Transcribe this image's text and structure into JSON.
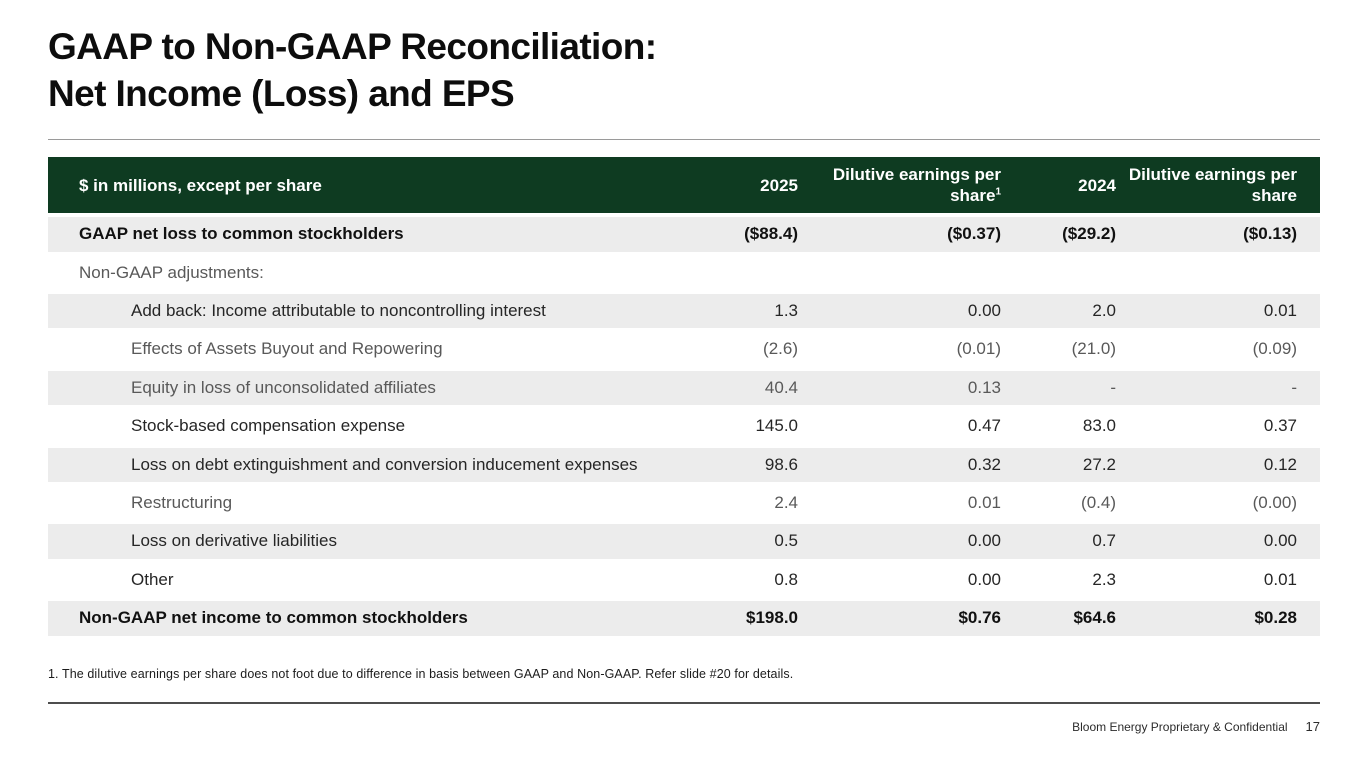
{
  "slide": {
    "title_line1": "GAAP to Non-GAAP Reconciliation:",
    "title_line2": "Net Income (Loss) and EPS"
  },
  "table": {
    "header": {
      "label": "$ in millions, except per share",
      "col_2025": "2025",
      "col_eps_2025": "Dilutive earnings per share",
      "col_eps_2025_footnote_marker": "1",
      "col_2024": "2024",
      "col_eps_2024": "Dilutive earnings per share"
    },
    "rows": [
      {
        "label": "GAAP net loss to common stockholders",
        "values": [
          "($88.4)",
          "($0.37)",
          "($29.2)",
          "($0.13)"
        ],
        "style": "total",
        "indent": false,
        "shade": true
      },
      {
        "label": "Non-GAAP adjustments:",
        "values": [
          "",
          "",
          "",
          ""
        ],
        "style": "section",
        "indent": false,
        "shade": false
      },
      {
        "label": "Add back: Income attributable to noncontrolling interest",
        "values": [
          "1.3",
          "0.00",
          "2.0",
          "0.01"
        ],
        "style": "dark",
        "indent": true,
        "shade": true
      },
      {
        "label": "Effects of Assets Buyout and Repowering",
        "values": [
          "(2.6)",
          "(0.01)",
          "(21.0)",
          "(0.09)"
        ],
        "style": "muted",
        "indent": true,
        "shade": false
      },
      {
        "label": "Equity in loss of unconsolidated affiliates",
        "values": [
          "40.4",
          "0.13",
          "-",
          "-"
        ],
        "style": "muted",
        "indent": true,
        "shade": true
      },
      {
        "label": "Stock-based compensation expense",
        "values": [
          "145.0",
          "0.47",
          "83.0",
          "0.37"
        ],
        "style": "dark",
        "indent": true,
        "shade": false
      },
      {
        "label": "Loss on debt extinguishment and conversion inducement expenses",
        "values": [
          "98.6",
          "0.32",
          "27.2",
          "0.12"
        ],
        "style": "dark",
        "indent": true,
        "shade": true
      },
      {
        "label": "Restructuring",
        "values": [
          "2.4",
          "0.01",
          "(0.4)",
          "(0.00)"
        ],
        "style": "muted",
        "indent": true,
        "shade": false
      },
      {
        "label": "Loss on derivative liabilities",
        "values": [
          "0.5",
          "0.00",
          "0.7",
          "0.00"
        ],
        "style": "dark",
        "indent": true,
        "shade": true
      },
      {
        "label": "Other",
        "values": [
          "0.8",
          "0.00",
          "2.3",
          "0.01"
        ],
        "style": "dark",
        "indent": true,
        "shade": false
      },
      {
        "label": "Non-GAAP net income to common stockholders",
        "values": [
          "$198.0",
          "$0.76",
          "$64.6",
          "$0.28"
        ],
        "style": "total",
        "indent": false,
        "shade": true
      }
    ]
  },
  "footnote": "1. The dilutive earnings per share does not foot due to difference in basis between GAAP and Non-GAAP. Refer slide #20 for details.",
  "footer": {
    "confidential": "Bloom Energy Proprietary & Confidential",
    "page_number": "17"
  },
  "colors": {
    "header_green": "#0e3b21",
    "stripe_gray": "#ececec",
    "muted_text": "#595959",
    "dark_text": "#262626"
  }
}
